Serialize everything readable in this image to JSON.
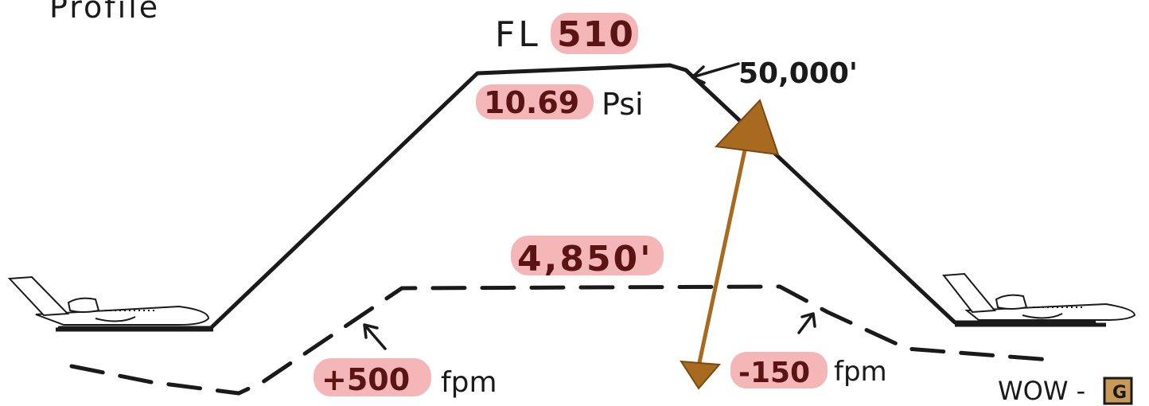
{
  "title": "Profile",
  "flight_level": {
    "prefix": "FL",
    "value": "510"
  },
  "cruise_altitude": "50,000'",
  "cabin_pressure": {
    "value": "10.69",
    "unit": "Psi"
  },
  "cabin_altitude": "4,850'",
  "climb_rate": {
    "value": "+500",
    "unit": "fpm"
  },
  "descent_rate": {
    "value": "-150",
    "unit": "fpm"
  },
  "wow": {
    "label": "WOW -",
    "badge": "G"
  },
  "colors": {
    "ink": "#1a1a1a",
    "highlight": "#f4b6b6",
    "highlight_text": "#5a1414",
    "differential_arrow": "#a86a1e",
    "badge_fill": "#c89a5a"
  }
}
